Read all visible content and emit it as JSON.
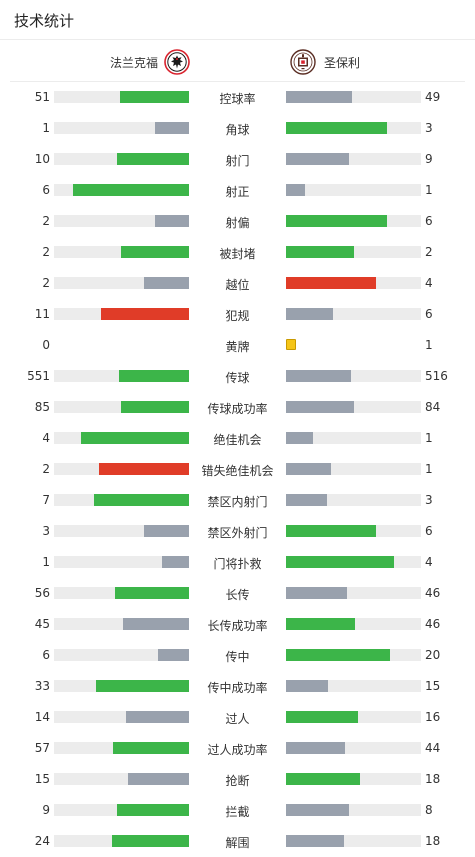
{
  "header": {
    "title": "技术统计"
  },
  "teams": {
    "home": {
      "name": "法兰克福",
      "logo_icon": "eintracht-frankfurt-eagle-logo"
    },
    "away": {
      "name": "圣保利",
      "logo_icon": "st-pauli-crest-logo"
    }
  },
  "colors": {
    "win": "#3cb549",
    "lose": "#99a1ad",
    "red": "#e03c28",
    "yellow": "#f5c518",
    "track": "#ececec"
  },
  "stats": [
    {
      "label": "控球率",
      "home": "51",
      "away": "49",
      "home_share": 0.51,
      "away_share": 0.49,
      "home_color": "win",
      "away_color": "lose"
    },
    {
      "label": "角球",
      "home": "1",
      "away": "3",
      "home_share": 0.25,
      "away_share": 0.75,
      "home_color": "lose",
      "away_color": "win"
    },
    {
      "label": "射门",
      "home": "10",
      "away": "9",
      "home_share": 0.53,
      "away_share": 0.47,
      "home_color": "win",
      "away_color": "lose"
    },
    {
      "label": "射正",
      "home": "6",
      "away": "1",
      "home_share": 0.86,
      "away_share": 0.14,
      "home_color": "win",
      "away_color": "lose"
    },
    {
      "label": "射偏",
      "home": "2",
      "away": "6",
      "home_share": 0.25,
      "away_share": 0.75,
      "home_color": "lose",
      "away_color": "win"
    },
    {
      "label": "被封堵",
      "home": "2",
      "away": "2",
      "home_share": 0.5,
      "away_share": 0.5,
      "home_color": "win",
      "away_color": "win"
    },
    {
      "label": "越位",
      "home": "2",
      "away": "4",
      "home_share": 0.33,
      "away_share": 0.67,
      "home_color": "lose",
      "away_color": "red"
    },
    {
      "label": "犯规",
      "home": "11",
      "away": "6",
      "home_share": 0.65,
      "away_share": 0.35,
      "home_color": "red",
      "away_color": "lose"
    },
    {
      "label": "黄牌",
      "home": "0",
      "away": "1",
      "home_share": 0,
      "away_share": 0,
      "home_color": "lose",
      "away_color": "yellow",
      "away_card": true
    },
    {
      "label": "传球",
      "home": "551",
      "away": "516",
      "home_share": 0.52,
      "away_share": 0.48,
      "home_color": "win",
      "away_color": "lose"
    },
    {
      "label": "传球成功率",
      "home": "85",
      "away": "84",
      "home_share": 0.5,
      "away_share": 0.5,
      "home_color": "win",
      "away_color": "lose"
    },
    {
      "label": "绝佳机会",
      "home": "4",
      "away": "1",
      "home_share": 0.8,
      "away_share": 0.2,
      "home_color": "win",
      "away_color": "lose"
    },
    {
      "label": "错失绝佳机会",
      "home": "2",
      "away": "1",
      "home_share": 0.67,
      "away_share": 0.33,
      "home_color": "red",
      "away_color": "lose"
    },
    {
      "label": "禁区内射门",
      "home": "7",
      "away": "3",
      "home_share": 0.7,
      "away_share": 0.3,
      "home_color": "win",
      "away_color": "lose"
    },
    {
      "label": "禁区外射门",
      "home": "3",
      "away": "6",
      "home_share": 0.33,
      "away_share": 0.67,
      "home_color": "lose",
      "away_color": "win"
    },
    {
      "label": "门将扑救",
      "home": "1",
      "away": "4",
      "home_share": 0.2,
      "away_share": 0.8,
      "home_color": "lose",
      "away_color": "win"
    },
    {
      "label": "长传",
      "home": "56",
      "away": "46",
      "home_share": 0.55,
      "away_share": 0.45,
      "home_color": "win",
      "away_color": "lose"
    },
    {
      "label": "长传成功率",
      "home": "45",
      "away": "46",
      "home_share": 0.49,
      "away_share": 0.51,
      "home_color": "lose",
      "away_color": "win"
    },
    {
      "label": "传中",
      "home": "6",
      "away": "20",
      "home_share": 0.23,
      "away_share": 0.77,
      "home_color": "lose",
      "away_color": "win"
    },
    {
      "label": "传中成功率",
      "home": "33",
      "away": "15",
      "home_share": 0.69,
      "away_share": 0.31,
      "home_color": "win",
      "away_color": "lose"
    },
    {
      "label": "过人",
      "home": "14",
      "away": "16",
      "home_share": 0.47,
      "away_share": 0.53,
      "home_color": "lose",
      "away_color": "win"
    },
    {
      "label": "过人成功率",
      "home": "57",
      "away": "44",
      "home_share": 0.56,
      "away_share": 0.44,
      "home_color": "win",
      "away_color": "lose"
    },
    {
      "label": "抢断",
      "home": "15",
      "away": "18",
      "home_share": 0.45,
      "away_share": 0.55,
      "home_color": "lose",
      "away_color": "win"
    },
    {
      "label": "拦截",
      "home": "9",
      "away": "8",
      "home_share": 0.53,
      "away_share": 0.47,
      "home_color": "win",
      "away_color": "lose"
    },
    {
      "label": "解围",
      "home": "24",
      "away": "18",
      "home_share": 0.57,
      "away_share": 0.43,
      "home_color": "win",
      "away_color": "lose"
    }
  ]
}
